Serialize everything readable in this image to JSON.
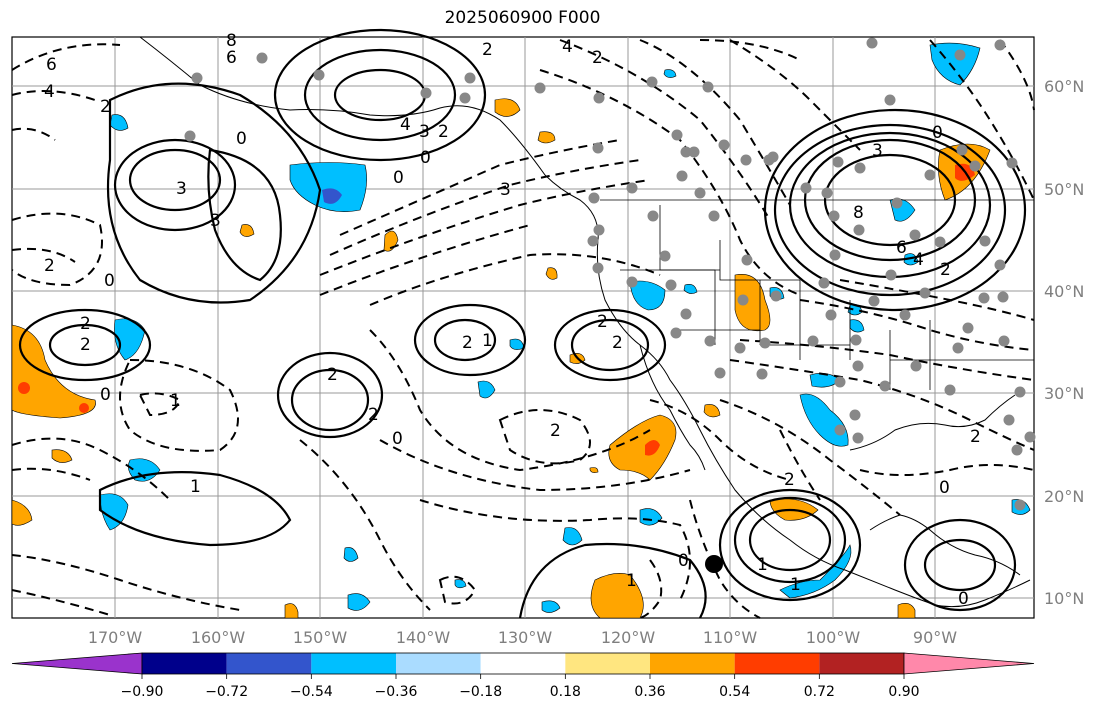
{
  "title": "2025060900 F000",
  "lat_labels": [
    "60°N",
    "50°N",
    "40°N",
    "30°N",
    "20°N",
    "10°N"
  ],
  "lon_labels": [
    "170°W",
    "160°W",
    "150°W",
    "140°W",
    "130°W",
    "120°W",
    "110°W",
    "100°W",
    "90°W"
  ],
  "colorbar": {
    "ticks": [
      "−0.90",
      "−0.72",
      "−0.54",
      "−0.36",
      "−0.18",
      "0.18",
      "0.36",
      "0.54",
      "0.72",
      "0.90"
    ],
    "colors": [
      "#9a33cc",
      "#00008b",
      "#3355cc",
      "#00bfff",
      "#aadcff",
      "#ffffff",
      "#ffe680",
      "#ffa500",
      "#ff3d00",
      "#b22222",
      "#ff88aa"
    ]
  },
  "contour_labels": [
    "6",
    "4",
    "8",
    "6",
    "2",
    "4",
    "2",
    "3",
    "2",
    "0",
    "4",
    "3",
    "2",
    "0",
    "3",
    "3",
    "0",
    "8",
    "6",
    "4",
    "2",
    "0",
    "3",
    "2",
    "0",
    "2",
    "2",
    "1",
    "2",
    "2",
    "2",
    "1",
    "0",
    "0",
    "1",
    "2",
    "2",
    "0",
    "1",
    "2",
    "2",
    "0",
    "0",
    "1",
    "1",
    "2"
  ],
  "colors": {
    "positive": "#ffa500",
    "negative": "#00bfff",
    "grid": "#999999",
    "station": "#888888"
  }
}
